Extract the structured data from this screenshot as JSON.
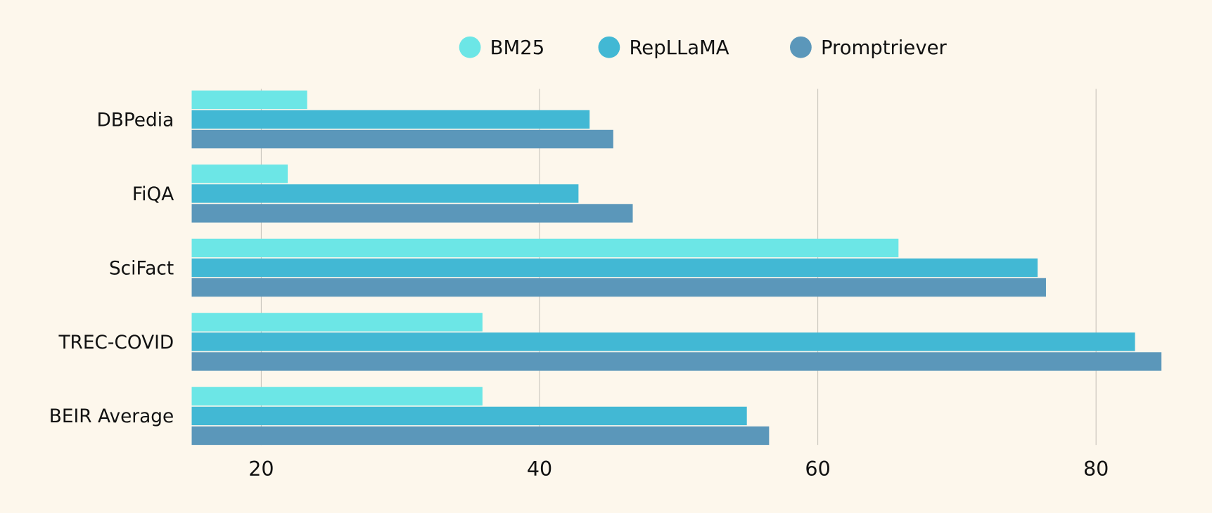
{
  "chart_data": {
    "type": "bar",
    "orientation": "horizontal",
    "categories": [
      "DBPedia",
      "FiQA",
      "SciFact",
      "TREC-COVID",
      "BEIR Average"
    ],
    "series": [
      {
        "name": "BM25",
        "color": "#6ce6e6",
        "values": [
          23.3,
          21.9,
          65.8,
          35.9,
          35.9
        ]
      },
      {
        "name": "RepLLaMA",
        "color": "#42b8d4",
        "values": [
          43.6,
          42.8,
          75.8,
          82.8,
          54.9
        ]
      },
      {
        "name": "Promptriever",
        "color": "#5b97ba",
        "values": [
          45.3,
          46.7,
          76.4,
          84.7,
          56.5
        ]
      }
    ],
    "xlim": [
      15,
      86
    ],
    "xticks": [
      "20",
      "40",
      "60",
      "80"
    ],
    "grid": true,
    "legend": "top",
    "title": "",
    "xlabel": "",
    "ylabel": ""
  }
}
